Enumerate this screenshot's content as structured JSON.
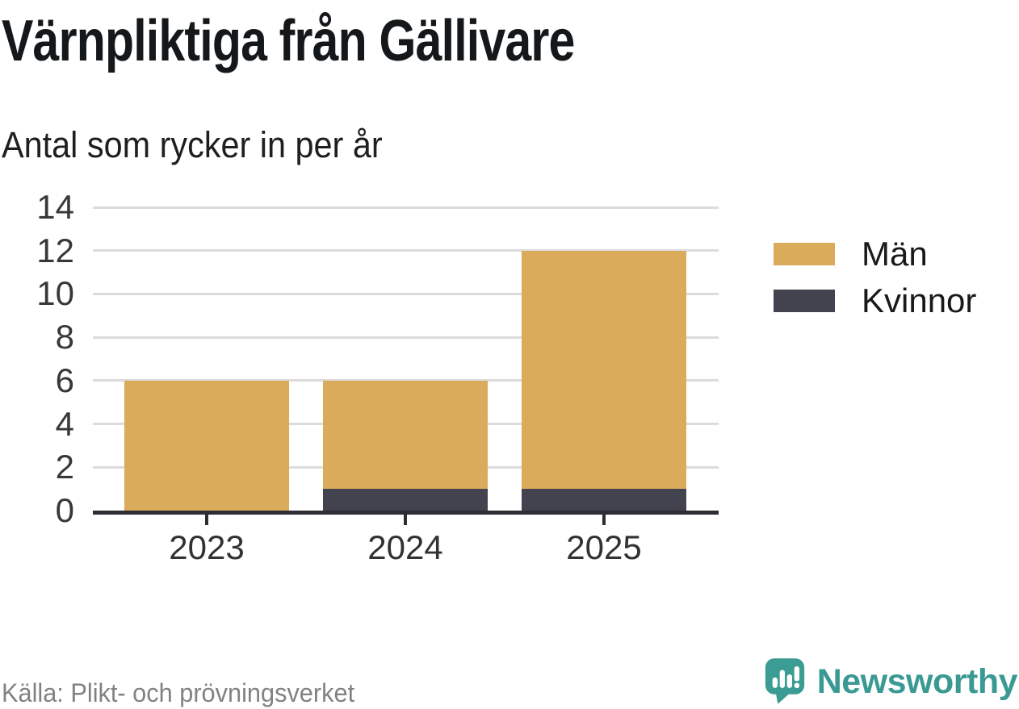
{
  "header": {
    "title": "Värnpliktiga från Gällivare",
    "subtitle": "Antal som rycker in per år"
  },
  "chart_data": {
    "type": "bar",
    "stacked": true,
    "title": "Värnpliktiga från Gällivare",
    "subtitle": "Antal som rycker in per år",
    "xlabel": "",
    "ylabel": "",
    "categories": [
      "2023",
      "2024",
      "2025"
    ],
    "series": [
      {
        "name": "Män",
        "color": "#d9ab5a",
        "values": [
          6,
          5,
          11
        ]
      },
      {
        "name": "Kvinnor",
        "color": "#43424f",
        "values": [
          0,
          1,
          1
        ]
      }
    ],
    "stack_order_bottom_to_top": [
      "Kvinnor",
      "Män"
    ],
    "totals": [
      6,
      6,
      12
    ],
    "ylim": [
      0,
      14
    ],
    "yticks": [
      0,
      2,
      4,
      6,
      8,
      10,
      12,
      14
    ],
    "grid": "horizontal-light-gray",
    "legend_position": "right"
  },
  "footer": {
    "source": "Källa: Plikt- och prövningsverket",
    "brand": "Newsworthy"
  },
  "colors": {
    "men": "#d9ab5a",
    "women": "#43424f",
    "axis": "#2e2d33",
    "gridline": "#dcdcdc",
    "title_text": "#15181a",
    "tick_text": "#36383a",
    "source_text": "#828282",
    "brand_teal": "#3a9a93",
    "brand_teal_dark": "#2f837d",
    "background": "#ffffff"
  }
}
